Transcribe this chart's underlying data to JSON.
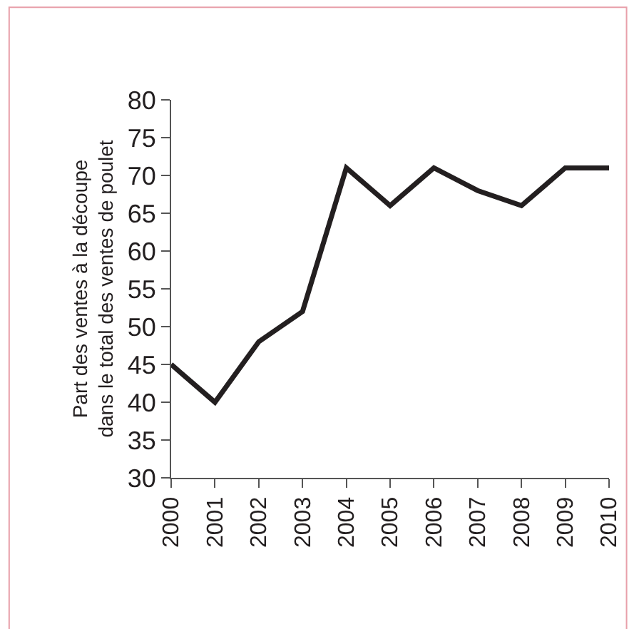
{
  "chart_data": {
    "type": "line",
    "ylabel": "Part des ventes à la découpe\ndans le total des ventes de poulet",
    "categories": [
      "2000",
      "2001",
      "2002",
      "2003",
      "2004",
      "2005",
      "2006",
      "2007",
      "2008",
      "2009",
      "2010"
    ],
    "series": [
      {
        "color": "#231f20",
        "values": [
          45,
          40,
          48,
          52,
          71,
          66,
          71,
          68,
          66,
          71,
          71
        ]
      }
    ],
    "ylim": [
      30,
      80
    ],
    "yticks": [
      30,
      35,
      40,
      45,
      50,
      55,
      60,
      65,
      70,
      75,
      80
    ],
    "marker": "none",
    "line_style": "solid"
  }
}
